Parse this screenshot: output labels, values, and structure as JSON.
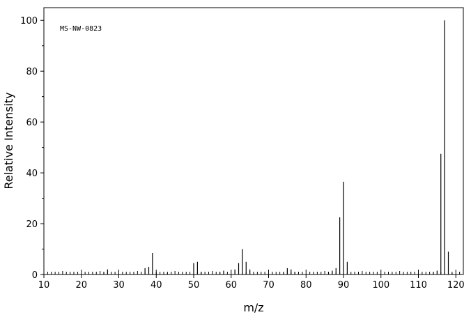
{
  "chart_data": {
    "type": "bar",
    "annotation": "MS-NW-0823",
    "xlabel": "m/z",
    "ylabel": "Relative Intensity",
    "xlim": [
      10,
      122
    ],
    "ylim": [
      0,
      105
    ],
    "x_ticks": [
      10,
      20,
      30,
      40,
      50,
      60,
      70,
      80,
      90,
      100,
      110,
      120
    ],
    "y_ticks": [
      0,
      20,
      40,
      60,
      80,
      100
    ],
    "grid": false,
    "peaks": [
      {
        "mz": 26,
        "intensity": 1.0
      },
      {
        "mz": 27,
        "intensity": 2.0
      },
      {
        "mz": 37,
        "intensity": 2.5
      },
      {
        "mz": 38,
        "intensity": 3.0
      },
      {
        "mz": 39,
        "intensity": 8.5
      },
      {
        "mz": 40,
        "intensity": 1.0
      },
      {
        "mz": 43,
        "intensity": 0.5
      },
      {
        "mz": 50,
        "intensity": 4.5
      },
      {
        "mz": 51,
        "intensity": 5.0
      },
      {
        "mz": 52,
        "intensity": 1.0
      },
      {
        "mz": 57,
        "intensity": 1.0
      },
      {
        "mz": 58,
        "intensity": 1.5
      },
      {
        "mz": 61,
        "intensity": 2.0
      },
      {
        "mz": 62,
        "intensity": 4.5
      },
      {
        "mz": 63,
        "intensity": 10.0
      },
      {
        "mz": 64,
        "intensity": 5.0
      },
      {
        "mz": 65,
        "intensity": 2.0
      },
      {
        "mz": 74,
        "intensity": 1.0
      },
      {
        "mz": 75,
        "intensity": 2.5
      },
      {
        "mz": 76,
        "intensity": 2.0
      },
      {
        "mz": 77,
        "intensity": 1.0
      },
      {
        "mz": 86,
        "intensity": 1.0
      },
      {
        "mz": 87,
        "intensity": 1.5
      },
      {
        "mz": 88,
        "intensity": 2.5
      },
      {
        "mz": 89,
        "intensity": 22.5
      },
      {
        "mz": 90,
        "intensity": 36.5
      },
      {
        "mz": 91,
        "intensity": 5.0
      },
      {
        "mz": 114,
        "intensity": 1.0
      },
      {
        "mz": 115,
        "intensity": 1.5
      },
      {
        "mz": 116,
        "intensity": 47.5
      },
      {
        "mz": 117,
        "intensity": 100.0
      },
      {
        "mz": 118,
        "intensity": 9.0
      },
      {
        "mz": 119,
        "intensity": 0.5
      }
    ]
  }
}
